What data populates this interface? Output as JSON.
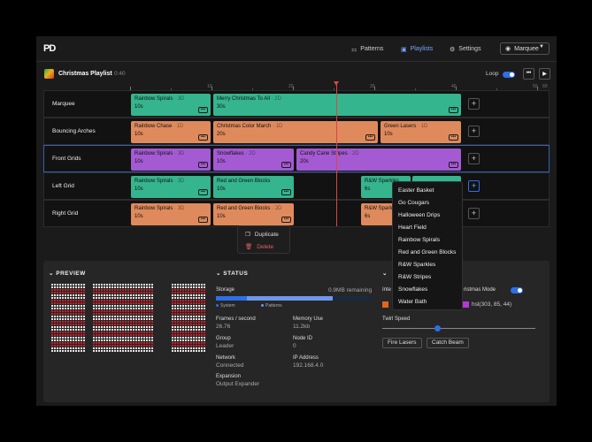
{
  "app": {
    "logo": "PD",
    "nav": [
      {
        "label": "Patterns",
        "icon": "patterns-icon"
      },
      {
        "label": "Playlists",
        "icon": "play-icon"
      },
      {
        "label": "Settings",
        "icon": "gear-icon"
      }
    ],
    "device": "Marquee"
  },
  "playlist": {
    "title": "Christmas Playlist",
    "duration": "· 0:40",
    "loop_label": "Loop",
    "loop_on": true
  },
  "ruler": {
    "labels": [
      "10",
      "20",
      "30",
      "40",
      "50",
      "60"
    ]
  },
  "tracks": [
    {
      "name": "Marquee",
      "clips": [
        {
          "name": "Rainbow Spirals",
          "dim": "· 3D",
          "dur": "10s",
          "color": "green"
        },
        {
          "name": "Merry Christmas To All",
          "dim": "· 2D",
          "dur": "30s",
          "color": "green"
        }
      ]
    },
    {
      "name": "Bouncing Arches",
      "clips": [
        {
          "name": "Rainbow Chase",
          "dim": "· 1D",
          "dur": "10s",
          "color": "orange"
        },
        {
          "name": "Christmas Color March",
          "dim": "· 1D",
          "dur": "20s",
          "color": "orange"
        },
        {
          "name": "Green Lasers",
          "dim": "· 1D",
          "dur": "10s",
          "color": "orange"
        }
      ]
    },
    {
      "name": "Front Grids",
      "clips": [
        {
          "name": "Rainbow Spirals",
          "dim": "· 3D",
          "dur": "10s",
          "color": "purple"
        },
        {
          "name": "Snowflakes",
          "dim": "· 2D",
          "dur": "10s",
          "color": "purple"
        },
        {
          "name": "Candy Cane Stripes",
          "dim": "· 2D",
          "dur": "20s",
          "color": "purple"
        }
      ]
    },
    {
      "name": "Left Grid",
      "clips": [
        {
          "name": "Rainbow Spirals",
          "dim": "· 3D",
          "dur": "10s",
          "color": "green"
        },
        {
          "name": "Red and Green Blocks",
          "dim": "",
          "dur": "10s",
          "color": "green"
        },
        {
          "name": "R&W Sparkles",
          "dim": "",
          "dur": "6s",
          "color": "green"
        },
        {
          "name": "",
          "dim": "",
          "dur": "",
          "color": "green"
        }
      ]
    },
    {
      "name": "Right Grid",
      "clips": [
        {
          "name": "Rainbow Spirals",
          "dim": "· 3D",
          "dur": "10s",
          "color": "orange"
        },
        {
          "name": "Red and Green Blocks",
          "dim": "· 2D",
          "dur": "10s",
          "color": "orange"
        },
        {
          "name": "R&W Sparkles",
          "dim": "",
          "dur": "6s",
          "color": "orange"
        }
      ]
    }
  ],
  "context_menu": {
    "duplicate": "Duplicate",
    "delete": "Delete"
  },
  "pattern_dropdown": [
    "Easter Basket",
    "Go Cougars",
    "Halloween Drips",
    "Heart Field",
    "Rainbow Spirals",
    "Red and Green Blocks",
    "R&W Sparkles",
    "R&W Stripes",
    "Snowflakes",
    "Water Bath"
  ],
  "preview": {
    "title": "PREVIEW"
  },
  "status": {
    "title": "STATUS",
    "storage_label": "Storage",
    "storage_remaining": "0.9MB remaining",
    "storage_system_fraction": 0.2,
    "storage_patterns_fraction": 0.55,
    "legend_system": "System",
    "legend_patterns": "Patterns",
    "fps_label": "Frames / second",
    "fps": "26.76",
    "memory_label": "Memory Use",
    "memory": "11.2kb",
    "group_label": "Group",
    "group": "Leader",
    "node_label": "Node ID",
    "node": "0",
    "network_label": "Network",
    "network": "Connected",
    "ip_label": "IP Address",
    "ip": "192.168.4.0",
    "expansion_label": "Expansion",
    "expansion": "Output Expander"
  },
  "controls": {
    "intensity_label": "Inte",
    "christmas_mode_label": "ristmas Mode",
    "christmas_mode_on": true,
    "swatch_left_color": "#e0661f",
    "swatch_right_color": "#b238d8",
    "hsl_value": "hsl(303, 85, 44)",
    "twirl_label": "Twirl Speed",
    "twirl_value_fraction": 0.36,
    "fire_lasers": "Fire Lasers",
    "catch_beam": "Catch Beam"
  },
  "colors": {
    "accent": "#2f6ee6",
    "playhead": "#d94646",
    "green": "#35b58d",
    "orange": "#df8a5c",
    "purple": "#a45ad3"
  }
}
